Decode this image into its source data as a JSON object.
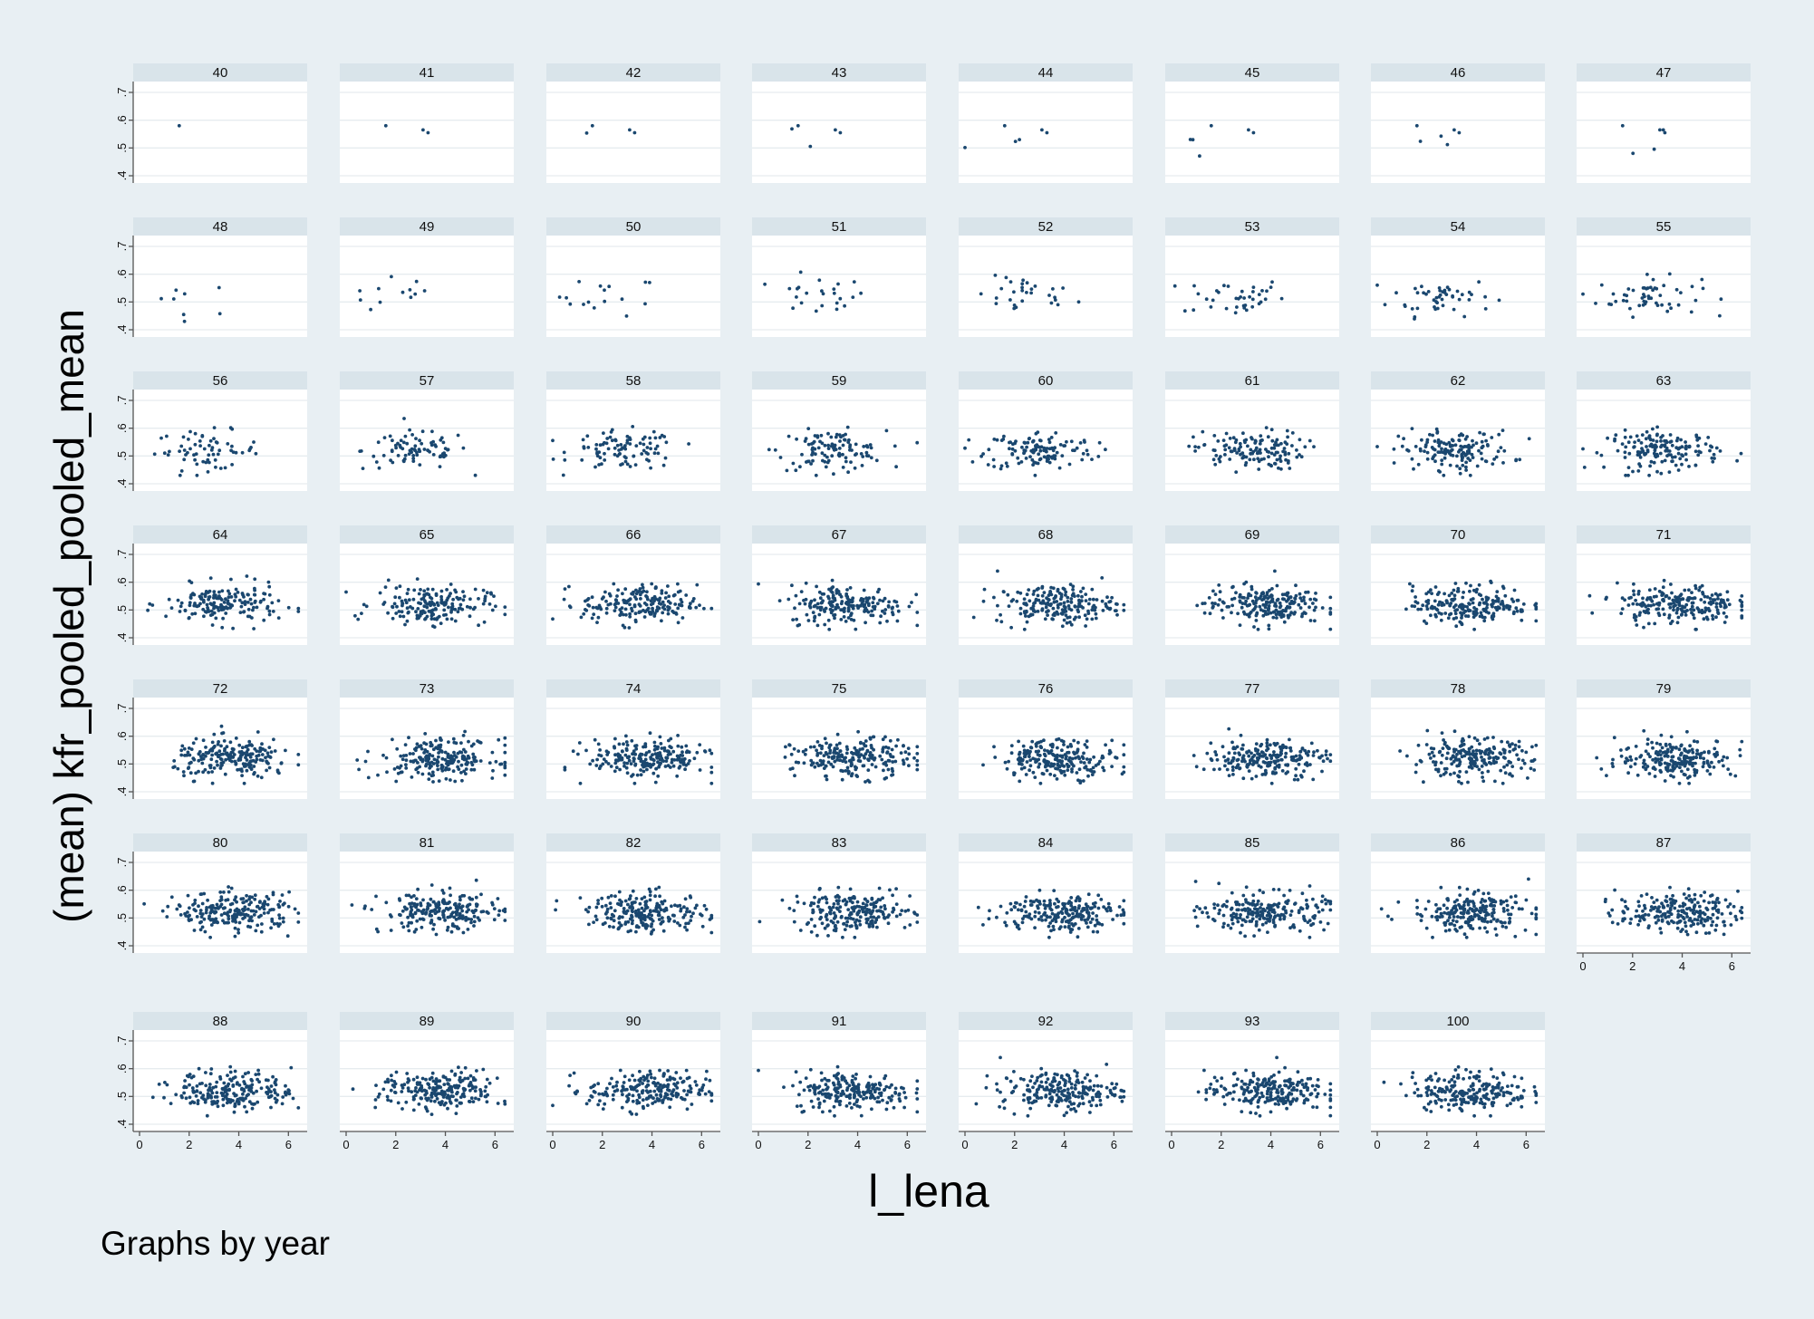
{
  "chart_data": {
    "type": "scatter",
    "layout": "small-multiples by year",
    "xlabel": "l_lena",
    "ylabel": "(mean) kfr_pooled_pooled_mean",
    "note": "Graphs by year",
    "xlim": [
      0,
      6.5
    ],
    "ylim": [
      0.4,
      0.7
    ],
    "xticks": [
      "0",
      "2",
      "4",
      "6"
    ],
    "yticks": [
      ".4",
      ".5",
      ".6",
      ".7"
    ],
    "xtick_values": [
      0,
      2,
      4,
      6
    ],
    "ytick_values": [
      0.4,
      0.5,
      0.6,
      0.7
    ],
    "grid": true,
    "marker_color": "#1a476f",
    "strip_color": "#d9e4ea",
    "background_color": "#e8eff3",
    "panels": [
      {
        "label": "40",
        "n_points": 1
      },
      {
        "label": "41",
        "n_points": 3
      },
      {
        "label": "42",
        "n_points": 4
      },
      {
        "label": "43",
        "n_points": 5
      },
      {
        "label": "44",
        "n_points": 6
      },
      {
        "label": "45",
        "n_points": 6
      },
      {
        "label": "46",
        "n_points": 6
      },
      {
        "label": "47",
        "n_points": 6
      },
      {
        "label": "48",
        "n_points": 8
      },
      {
        "label": "49",
        "n_points": 12
      },
      {
        "label": "50",
        "n_points": 16
      },
      {
        "label": "51",
        "n_points": 24
      },
      {
        "label": "52",
        "n_points": 30
      },
      {
        "label": "53",
        "n_points": 38
      },
      {
        "label": "54",
        "n_points": 48
      },
      {
        "label": "55",
        "n_points": 55
      },
      {
        "label": "56",
        "n_points": 65
      },
      {
        "label": "57",
        "n_points": 80
      },
      {
        "label": "58",
        "n_points": 95
      },
      {
        "label": "59",
        "n_points": 110
      },
      {
        "label": "60",
        "n_points": 125
      },
      {
        "label": "61",
        "n_points": 140
      },
      {
        "label": "62",
        "n_points": 150
      },
      {
        "label": "63",
        "n_points": 160
      },
      {
        "label": "64",
        "n_points": 170
      },
      {
        "label": "65",
        "n_points": 180
      },
      {
        "label": "66",
        "n_points": 190
      },
      {
        "label": "67",
        "n_points": 200
      },
      {
        "label": "68",
        "n_points": 205
      },
      {
        "label": "69",
        "n_points": 210
      },
      {
        "label": "70",
        "n_points": 210
      },
      {
        "label": "71",
        "n_points": 215
      },
      {
        "label": "72",
        "n_points": 215
      },
      {
        "label": "73",
        "n_points": 220
      },
      {
        "label": "74",
        "n_points": 220
      },
      {
        "label": "75",
        "n_points": 220
      },
      {
        "label": "76",
        "n_points": 220
      },
      {
        "label": "77",
        "n_points": 220
      },
      {
        "label": "78",
        "n_points": 220
      },
      {
        "label": "79",
        "n_points": 220
      },
      {
        "label": "80",
        "n_points": 220
      },
      {
        "label": "81",
        "n_points": 220
      },
      {
        "label": "82",
        "n_points": 220
      },
      {
        "label": "83",
        "n_points": 220
      },
      {
        "label": "84",
        "n_points": 220
      },
      {
        "label": "85",
        "n_points": 220
      },
      {
        "label": "86",
        "n_points": 220
      },
      {
        "label": "87",
        "n_points": 220
      },
      {
        "label": "88",
        "n_points": 220
      },
      {
        "label": "89",
        "n_points": 220
      },
      {
        "label": "90",
        "n_points": 220
      },
      {
        "label": "91",
        "n_points": 220
      },
      {
        "label": "92",
        "n_points": 220
      },
      {
        "label": "93",
        "n_points": 220
      },
      {
        "label": "100",
        "n_points": 220
      }
    ],
    "x_axis_shown_on": [
      "87",
      "88",
      "89",
      "90",
      "91",
      "92",
      "93",
      "100"
    ],
    "y_axis_shown_on_first_column": true
  }
}
